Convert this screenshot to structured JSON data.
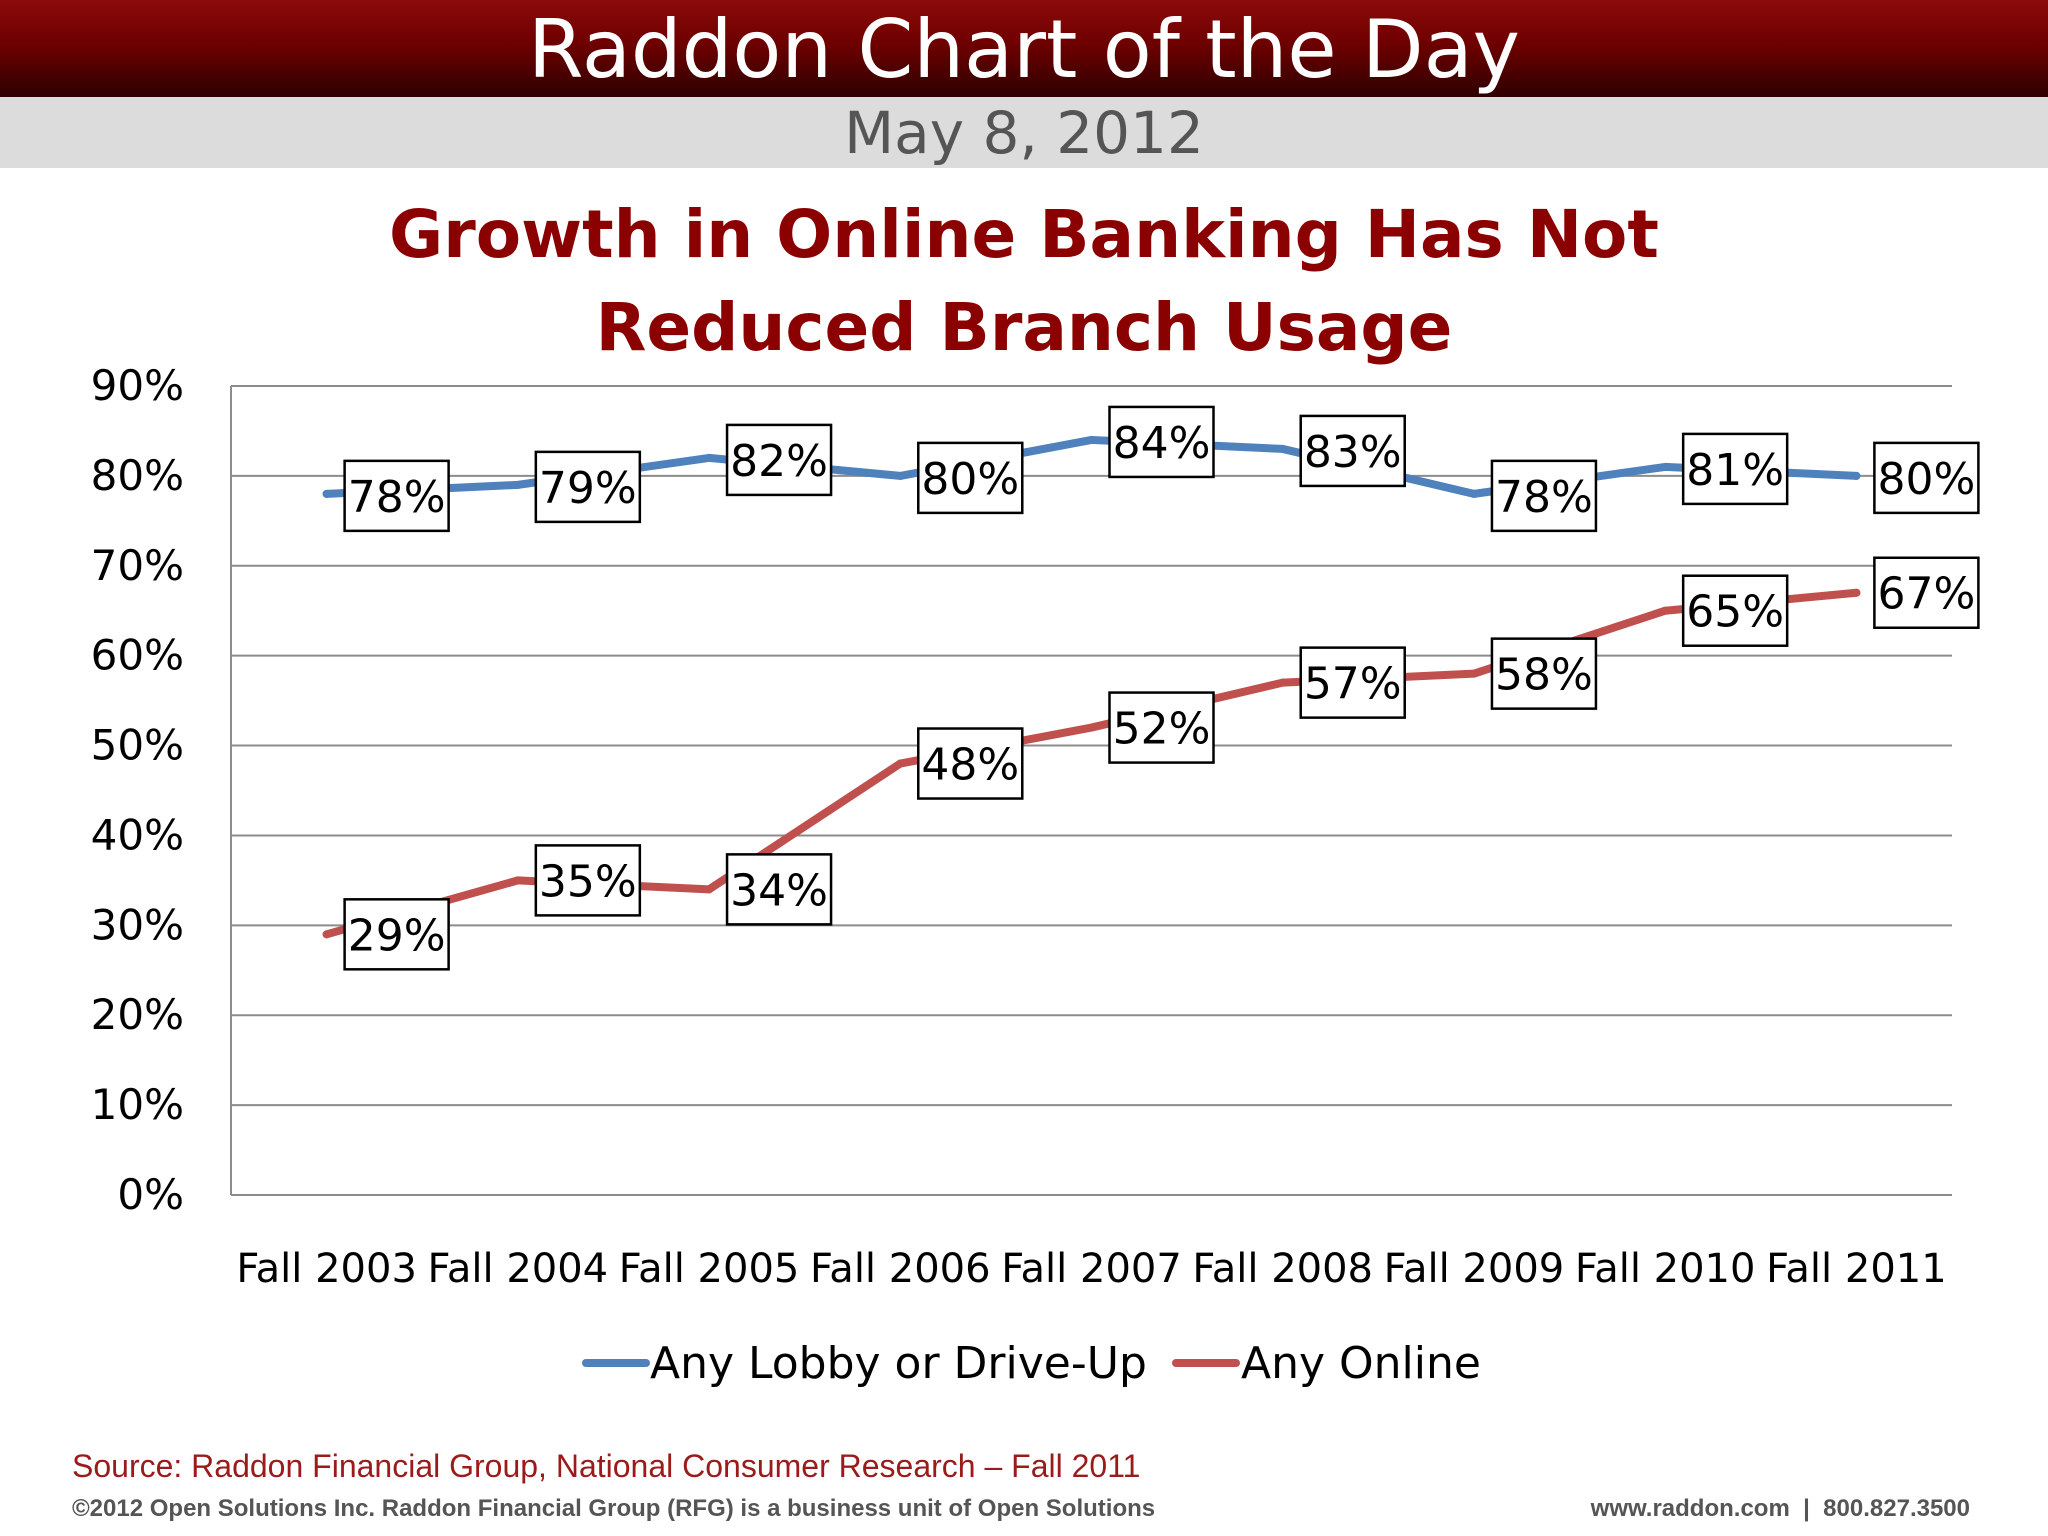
{
  "header": {
    "title": "Raddon Chart of the Day",
    "date": "May 8, 2012"
  },
  "chart_data": {
    "type": "line",
    "title": "Growth in Online Banking Has Not Reduced Branch Usage",
    "title_lines": [
      "Growth in Online Banking Has Not",
      "Reduced Branch Usage"
    ],
    "categories": [
      "Fall 2003",
      "Fall 2004",
      "Fall 2005",
      "Fall 2006",
      "Fall 2007",
      "Fall 2008",
      "Fall 2009",
      "Fall 2010",
      "Fall 2011"
    ],
    "series": [
      {
        "name": "Any Lobby or Drive-Up",
        "color": "#4f81bd",
        "values": [
          78,
          79,
          82,
          80,
          84,
          83,
          78,
          81,
          80
        ],
        "labels": [
          "78%",
          "79%",
          "82%",
          "80%",
          "84%",
          "83%",
          "78%",
          "81%",
          "80%"
        ]
      },
      {
        "name": "Any Online",
        "color": "#c0504d",
        "values": [
          29,
          35,
          34,
          48,
          52,
          57,
          58,
          65,
          67
        ],
        "labels": [
          "29%",
          "35%",
          "34%",
          "48%",
          "52%",
          "57%",
          "58%",
          "65%",
          "67%"
        ]
      }
    ],
    "ylim": [
      0,
      90
    ],
    "yticks": [
      "0%",
      "10%",
      "20%",
      "30%",
      "40%",
      "50%",
      "60%",
      "70%",
      "80%",
      "90%"
    ],
    "grid": true,
    "legend_position": "bottom"
  },
  "footer": {
    "source": "Source: Raddon Financial Group, National Consumer Research – Fall 2011",
    "copyright": "©2012 Open Solutions Inc.  Raddon Financial Group (RFG) is a business unit of Open Solutions",
    "contact": "www.raddon.com  |  800.827.3500"
  }
}
